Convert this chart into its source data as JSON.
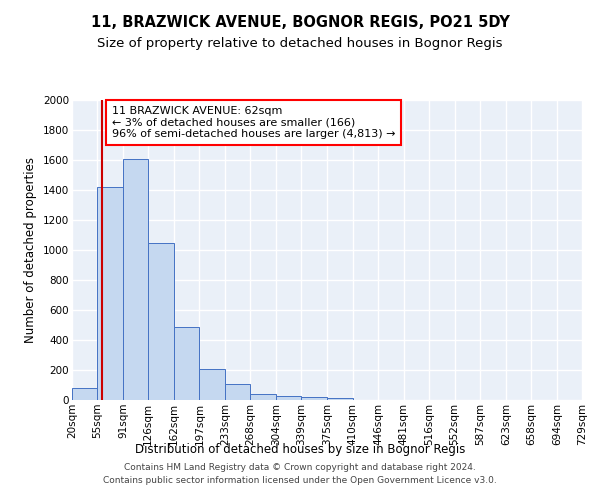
{
  "title": "11, BRAZWICK AVENUE, BOGNOR REGIS, PO21 5DY",
  "subtitle": "Size of property relative to detached houses in Bognor Regis",
  "xlabel": "Distribution of detached houses by size in Bognor Regis",
  "ylabel": "Number of detached properties",
  "footer_line1": "Contains HM Land Registry data © Crown copyright and database right 2024.",
  "footer_line2": "Contains public sector information licensed under the Open Government Licence v3.0.",
  "annotation_line1": "11 BRAZWICK AVENUE: 62sqm",
  "annotation_line2": "← 3% of detached houses are smaller (166)",
  "annotation_line3": "96% of semi-detached houses are larger (4,813) →",
  "property_size_sqm": 62,
  "bin_edges": [
    20,
    55,
    91,
    126,
    162,
    197,
    233,
    268,
    304,
    339,
    375,
    410,
    446,
    481,
    516,
    552,
    587,
    623,
    658,
    694,
    729
  ],
  "bar_heights": [
    80,
    1420,
    1610,
    1050,
    490,
    205,
    105,
    40,
    30,
    20,
    15,
    0,
    0,
    0,
    0,
    0,
    0,
    0,
    0,
    0
  ],
  "bar_color": "#c5d8f0",
  "bar_edge_color": "#4472c4",
  "vline_color": "#cc0000",
  "vline_x": 62,
  "ylim": [
    0,
    2000
  ],
  "yticks": [
    0,
    200,
    400,
    600,
    800,
    1000,
    1200,
    1400,
    1600,
    1800,
    2000
  ],
  "bg_color": "#eaf0f8",
  "grid_color": "#ffffff",
  "title_fontsize": 10.5,
  "subtitle_fontsize": 9.5,
  "axis_label_fontsize": 8.5,
  "tick_fontsize": 7.5,
  "annotation_fontsize": 8,
  "footer_fontsize": 6.5
}
